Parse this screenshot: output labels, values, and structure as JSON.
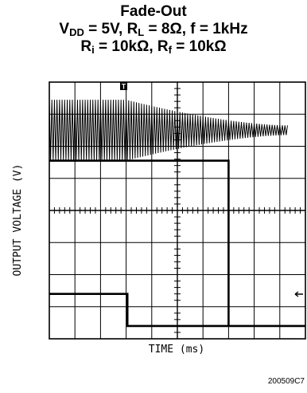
{
  "chart_data": {
    "type": "line",
    "title": "Fade-Out",
    "subtitle_line1": {
      "vdd_symbol": "V",
      "vdd_sub": "DD",
      "vdd_value": " = 5V, ",
      "rl_symbol": "R",
      "rl_sub": "L",
      "rl_value": " = 8Ω, f = 1kHz"
    },
    "subtitle_line2": {
      "ri_symbol": "R",
      "ri_sub": "i",
      "ri_value": " = 10kΩ, ",
      "rf_symbol": "R",
      "rf_sub": "f",
      "rf_value": " = 10kΩ"
    },
    "xlabel": "TIME (ms)",
    "ylabel": "OUTPUT VOLTAGE (V)",
    "trigger_marker": "T",
    "figure_id": "200509C7",
    "grid": true,
    "grid_divisions": {
      "x": 10,
      "y": 8
    },
    "series": [
      {
        "kind": "output-envelope",
        "segments": [
          {
            "x_div": [
              0,
              3.0
            ],
            "y_div": [
              0.9,
              2.1
            ]
          },
          {
            "x_div": [
              4.0,
              9.3
            ],
            "y_div": [
              0.55,
              2.45
            ]
          }
        ]
      },
      {
        "kind": "control-step",
        "points": [
          [
            0,
            6.6
          ],
          [
            3.05,
            6.6
          ],
          [
            3.05,
            7.6
          ],
          [
            10,
            7.6
          ]
        ]
      },
      {
        "kind": "upper-step",
        "points": [
          [
            0,
            2.45
          ],
          [
            7.0,
            2.45
          ],
          [
            7.0,
            7.6
          ]
        ]
      }
    ]
  }
}
